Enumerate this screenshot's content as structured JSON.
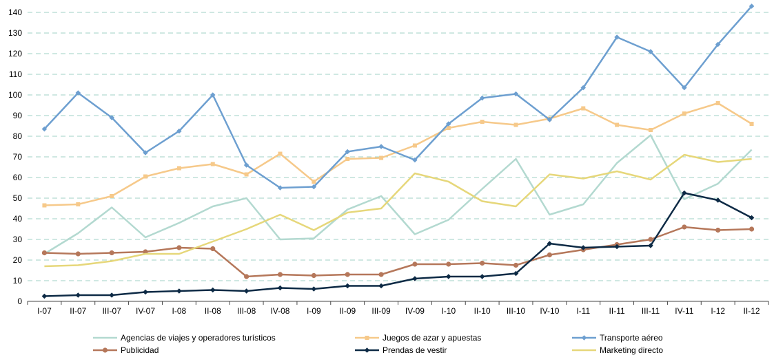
{
  "chart_data": {
    "type": "line",
    "title": "",
    "xlabel": "",
    "ylabel": "",
    "ylim": [
      0,
      140
    ],
    "yticks": [
      "0",
      "10",
      "20",
      "30",
      "40",
      "50",
      "60",
      "70",
      "80",
      "90",
      "100",
      "110",
      "120",
      "130",
      "140"
    ],
    "grid": "horizontal dashed",
    "legend": "bottom",
    "categories": [
      "I-07",
      "II-07",
      "III-07",
      "IV-07",
      "I-08",
      "II-08",
      "III-08",
      "IV-08",
      "I-09",
      "II-09",
      "III-09",
      "IV-09",
      "I-10",
      "II-10",
      "III-10",
      "IV-10",
      "I-11",
      "II-11",
      "III-11",
      "IV-11",
      "I-12",
      "II-12"
    ],
    "series": [
      {
        "name": "Agencias de viajes y operadores turísticos",
        "color": "#b3d9d0",
        "marker": "none",
        "width": 2.5,
        "values": [
          23,
          33,
          45.5,
          31,
          38,
          46,
          50,
          30,
          30.5,
          44.5,
          51,
          32.5,
          39.5,
          54.5,
          69,
          42,
          47,
          67,
          80.5,
          49.5,
          57,
          73.5
        ]
      },
      {
        "name": "Juegos de azar y apuestas",
        "color": "#f6c98a",
        "marker": "square",
        "width": 2.5,
        "values": [
          46.5,
          47,
          51,
          60.5,
          64.5,
          66.5,
          61.5,
          71.5,
          58,
          69,
          69.5,
          75.5,
          84,
          87,
          85.5,
          88.5,
          93.5,
          85.5,
          83,
          91,
          96,
          86
        ]
      },
      {
        "name": "Transporte aéreo",
        "color": "#6d9fd0",
        "marker": "diamond",
        "width": 2.5,
        "values": [
          83.5,
          101,
          89,
          72,
          82.5,
          100,
          66,
          55,
          55.5,
          72.5,
          75,
          68.5,
          86,
          98.5,
          100.5,
          88,
          103.5,
          128,
          121,
          103.5,
          124.5,
          143
        ]
      },
      {
        "name": "Publicidad",
        "color": "#b5775a",
        "marker": "circle",
        "width": 2.5,
        "values": [
          23.5,
          23,
          23.5,
          24,
          26,
          25.5,
          12,
          13,
          12.5,
          13,
          13,
          18,
          18,
          18.5,
          17.5,
          22.5,
          25,
          27.5,
          30,
          36,
          34.5,
          35
        ]
      },
      {
        "name": "Prendas de vestir",
        "color": "#0d2a45",
        "marker": "diamond",
        "width": 2.5,
        "values": [
          2.5,
          3,
          3,
          4.5,
          5,
          5.5,
          5,
          6.5,
          6,
          7.5,
          7.5,
          11,
          12,
          12,
          13.5,
          28,
          26,
          26.5,
          27,
          52.5,
          49,
          40.5
        ]
      },
      {
        "name": "Marketing directo",
        "color": "#e6d77a",
        "marker": "none",
        "width": 2.5,
        "values": [
          17,
          17.5,
          19.5,
          23,
          23,
          29,
          35,
          42,
          34.5,
          43,
          45,
          62,
          58,
          48.5,
          46,
          61.5,
          59.5,
          63,
          59,
          71,
          67.5,
          69
        ]
      }
    ]
  }
}
